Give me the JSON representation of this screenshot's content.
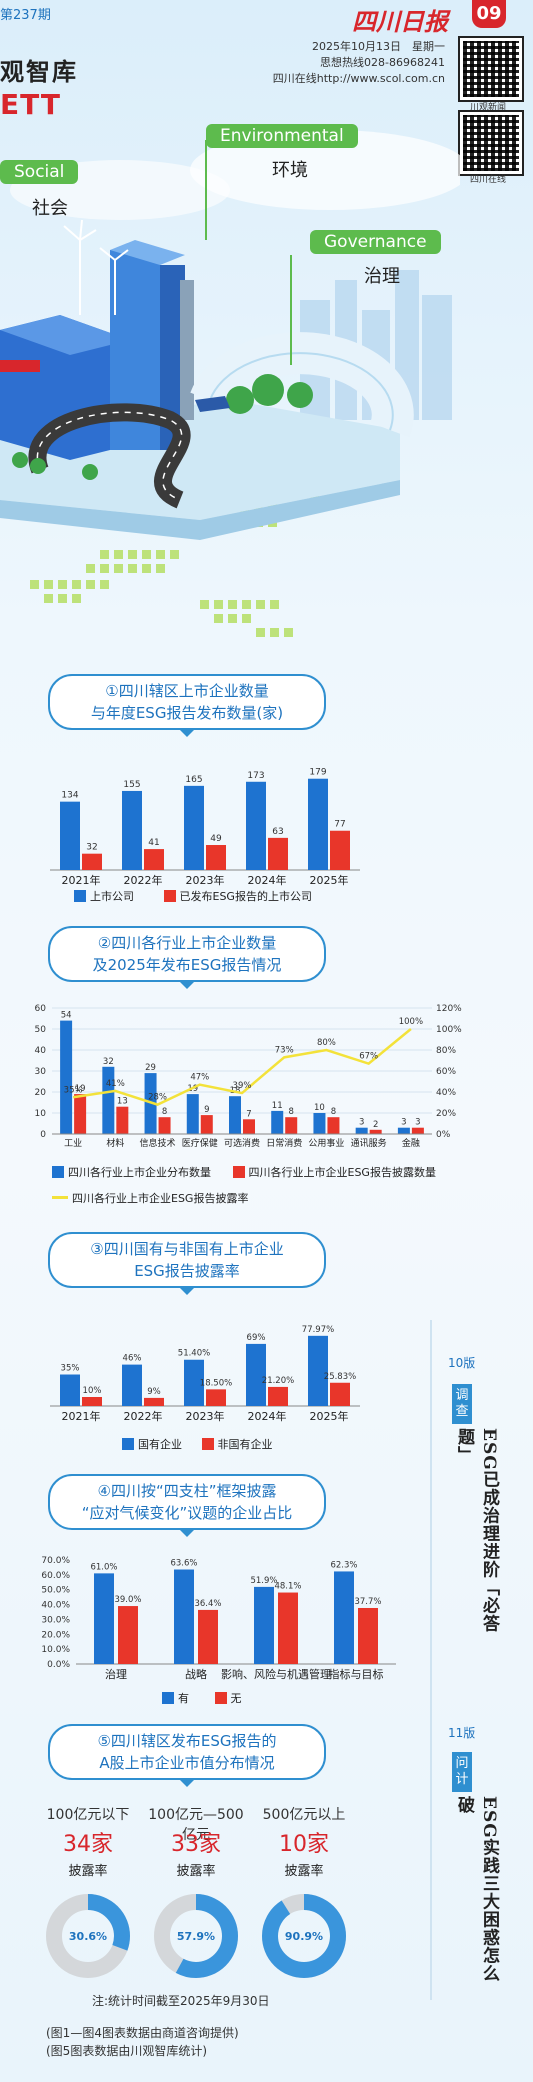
{
  "header": {
    "issue": "第237期",
    "masthead": "观智库",
    "brand_mark": "ETT",
    "paper_name": "四川日报",
    "page_number": "09",
    "date_line": "2025年10月13日　星期一",
    "hotline": "思想热线028-86968241",
    "website": "四川在线http://www.scol.com.cn",
    "qr_labels": [
      "川观新闻",
      "四川在线"
    ]
  },
  "hero": {
    "pills": [
      {
        "en": "Social",
        "zh": "社会"
      },
      {
        "en": "Environmental",
        "zh": "环境"
      },
      {
        "en": "Governance",
        "zh": "治理"
      }
    ]
  },
  "sections": {
    "s1": {
      "title_line1": "①四川辖区上市企业数量",
      "title_line2": "与年度ESG报告发布数量(家)"
    },
    "s2": {
      "title_line1": "②四川各行业上市企业数量",
      "title_line2": "及2025年发布ESG报告情况"
    },
    "s3": {
      "title_line1": "③四川国有与非国有上市企业",
      "title_line2": "ESG报告披露率"
    },
    "s4": {
      "title_line1": "④四川按“四支柱”框架披露",
      "title_line2": "“应对气候变化”议题的企业占比"
    },
    "s5": {
      "title_line1": "⑤四川辖区发布ESG报告的",
      "title_line2": "A股上市企业市值分布情况"
    }
  },
  "colors": {
    "blue": "#1e73d0",
    "red": "#e8362a",
    "yellow": "#f3e23a",
    "pill_green": "#5dbb4d",
    "frame_blue": "#2f8fd0"
  },
  "chart_data": [
    {
      "type": "bar",
      "categories": [
        "2021年",
        "2022年",
        "2023年",
        "2024年",
        "2025年"
      ],
      "series": [
        {
          "name": "上市公司",
          "values": [
            134,
            155,
            165,
            173,
            179
          ]
        },
        {
          "name": "已发布ESG报告的上市公司",
          "values": [
            32,
            41,
            49,
            63,
            77
          ]
        }
      ],
      "ylim": [
        0,
        200
      ]
    },
    {
      "type": "bar",
      "categories": [
        "工业",
        "材料",
        "信息技术",
        "医疗保健",
        "可选消费",
        "日常消费",
        "公用事业",
        "通讯服务",
        "金融"
      ],
      "series": [
        {
          "name": "四川各行业上市企业分布数量",
          "values": [
            54,
            32,
            29,
            19,
            18,
            11,
            10,
            3,
            3
          ]
        },
        {
          "name": "四川各行业上市企业ESG报告披露数量",
          "values": [
            19,
            13,
            8,
            9,
            7,
            8,
            8,
            2,
            3
          ]
        },
        {
          "name": "四川各行业上市企业ESG报告披露率",
          "type": "line",
          "values": [
            35,
            41,
            28,
            47,
            39,
            73,
            80,
            67,
            100
          ],
          "value_labels": [
            "35%",
            "41%",
            "28%",
            "47%",
            "39%",
            "73%",
            "80%",
            "67%",
            "100%"
          ]
        }
      ],
      "yticks_left": [
        "0",
        "10",
        "20",
        "30",
        "40",
        "50",
        "60"
      ],
      "yticks_right": [
        "0%",
        "20%",
        "40%",
        "60%",
        "80%",
        "100%",
        "120%"
      ],
      "ylim_left": [
        0,
        60
      ],
      "ylim_right": [
        0,
        120
      ]
    },
    {
      "type": "bar",
      "categories": [
        "2021年",
        "2022年",
        "2023年",
        "2024年",
        "2025年"
      ],
      "series": [
        {
          "name": "国有企业",
          "values": [
            35,
            46,
            51.4,
            69,
            77.97
          ],
          "value_labels": [
            "35%",
            "46%",
            "51.40%",
            "69%",
            "77.97%"
          ]
        },
        {
          "name": "非国有企业",
          "values": [
            10,
            9,
            18.5,
            21.2,
            25.83
          ],
          "value_labels": [
            "10%",
            "9%",
            "18.50%",
            "21.20%",
            "25.83%"
          ]
        }
      ],
      "ylim": [
        0,
        100
      ]
    },
    {
      "type": "bar",
      "categories": [
        "治理",
        "战略",
        "影响、风险与机遇管理",
        "指标与目标"
      ],
      "series": [
        {
          "name": "有",
          "values": [
            61.0,
            63.6,
            51.9,
            62.3
          ],
          "value_labels": [
            "61.0%",
            "63.6%",
            "51.9%",
            "62.3%"
          ]
        },
        {
          "name": "无",
          "values": [
            39.0,
            36.4,
            48.1,
            37.7
          ],
          "value_labels": [
            "39.0%",
            "36.4%",
            "48.1%",
            "37.7%"
          ]
        }
      ],
      "yticks": [
        "0.0%",
        "10.0%",
        "20.0%",
        "30.0%",
        "40.0%",
        "50.0%",
        "60.0%",
        "70.0%"
      ],
      "ylim": [
        0,
        70
      ]
    },
    {
      "type": "pie",
      "groups": [
        {
          "title": "100亿元以下",
          "count": "34",
          "unit": "家",
          "label": "披露率",
          "value": 30.6,
          "value_label": "30.6%"
        },
        {
          "title": "100亿元—500亿元",
          "count": "33",
          "unit": "家",
          "label": "披露率",
          "value": 57.9,
          "value_label": "57.9%"
        },
        {
          "title": "500亿元以上",
          "count": "10",
          "unit": "家",
          "label": "披露率",
          "value": 90.9,
          "value_label": "90.9%"
        }
      ]
    }
  ],
  "notes": {
    "stat_time": "注:统计时间截至2025年9月30日",
    "source1": "(图1—图4图表数据由商道咨询提供)",
    "source2": "(图5图表数据由川观智库统计)"
  },
  "sidebar": [
    {
      "edition": "10版",
      "tag": "调查",
      "title": "ESG已成治理进阶「必答题」"
    },
    {
      "edition": "11版",
      "tag": "问计",
      "title": "ESG实践三大困惑怎么破"
    }
  ]
}
